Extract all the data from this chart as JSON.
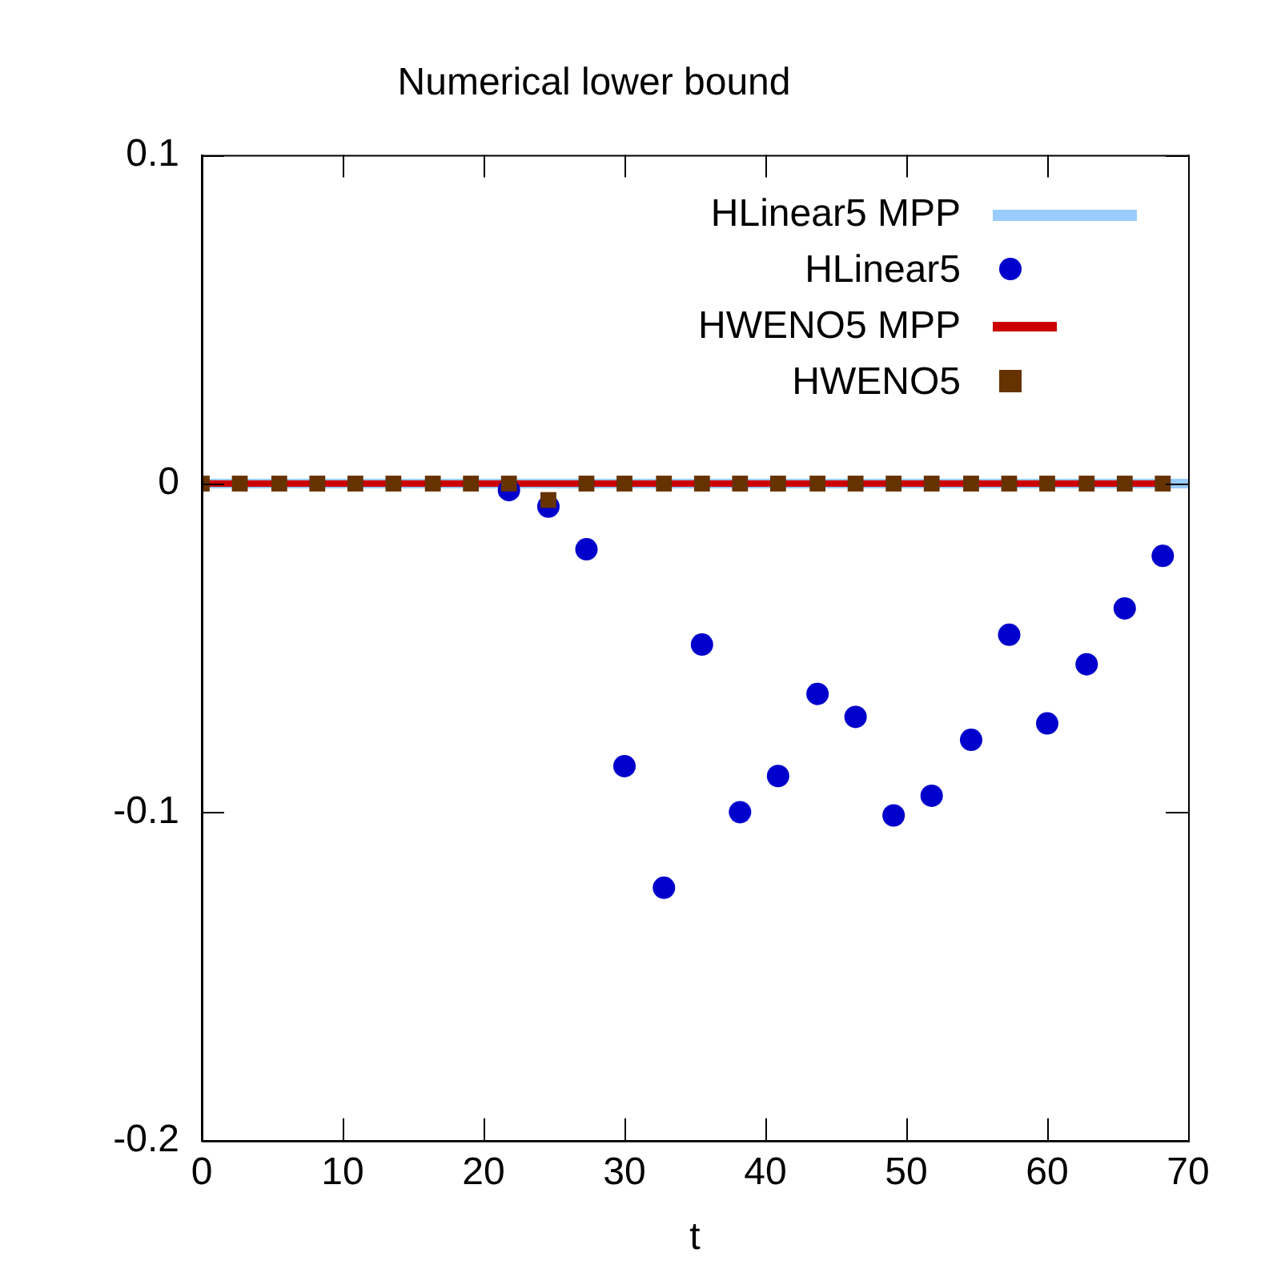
{
  "chart_data": {
    "type": "scatter",
    "title": "Numerical lower bound",
    "xlabel": "t",
    "xlim": [
      0,
      70
    ],
    "xticks": [
      0,
      10,
      20,
      30,
      40,
      50,
      60,
      70
    ],
    "ylim": [
      -0.2,
      0.1
    ],
    "yticks": [
      -0.2,
      -0.1,
      0,
      0.1
    ],
    "grid": false,
    "legend": "top right",
    "series": [
      {
        "name": "HLinear5 MPP",
        "type": "line",
        "marker": "none",
        "color": "#99ccff",
        "x": [
          0,
          70
        ],
        "values": [
          0,
          0
        ]
      },
      {
        "name": "HLinear5",
        "type": "scatter",
        "marker": "circle",
        "color": "#0000cc",
        "x": [
          21.8,
          24.6,
          27.3,
          30,
          32.8,
          35.5,
          38.2,
          40.9,
          43.7,
          46.4,
          49.1,
          51.8,
          54.6,
          57.3,
          60,
          62.8,
          65.5,
          68.2
        ],
        "values": [
          -0.002,
          -0.007,
          -0.02,
          -0.086,
          -0.123,
          -0.049,
          -0.1,
          -0.089,
          -0.064,
          -0.071,
          -0.101,
          -0.095,
          -0.078,
          -0.046,
          -0.073,
          -0.055,
          -0.038,
          -0.022
        ]
      },
      {
        "name": "HWENO5 MPP",
        "type": "line",
        "marker": "none",
        "color": "#cc0000",
        "x": [
          0,
          68.2
        ],
        "values": [
          0,
          0
        ]
      },
      {
        "name": "HWENO5",
        "type": "scatter",
        "marker": "square",
        "color": "#663300",
        "x": [
          0,
          2.7,
          5.5,
          8.2,
          10.9,
          13.6,
          16.4,
          19.1,
          21.8,
          24.6,
          27.3,
          30,
          32.8,
          35.5,
          38.2,
          40.9,
          43.7,
          46.4,
          49.1,
          51.8,
          54.6,
          57.3,
          60,
          62.8,
          65.5,
          68.2
        ],
        "values": [
          0,
          0,
          0,
          0,
          0,
          0,
          0,
          0,
          0,
          -0.005,
          0,
          0,
          0,
          0,
          0,
          0,
          0,
          0,
          0,
          0,
          0,
          0,
          0,
          0,
          0,
          0
        ]
      }
    ]
  }
}
